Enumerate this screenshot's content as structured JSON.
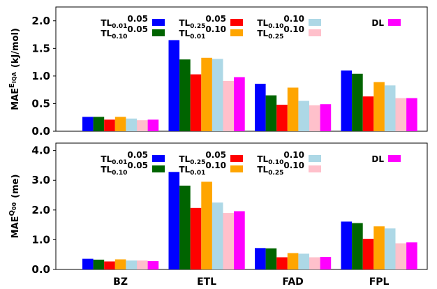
{
  "chart_data": [
    {
      "type": "bar",
      "legend": "upper center",
      "ylabel": {
        "base": "MAE",
        "sup": "E",
        "sup_sub": "IQA",
        "unit": "(kJ/mol)"
      },
      "ylim": [
        0,
        2.25
      ],
      "yticks": [
        {
          "value": 0,
          "label": "0.0"
        },
        {
          "value": 0.5,
          "label": "0.5"
        },
        {
          "value": 1,
          "label": "1.0"
        },
        {
          "value": 1.5,
          "label": "1.5"
        },
        {
          "value": 2,
          "label": "2.0"
        }
      ],
      "series": [
        {
          "name": "TL",
          "sub": "0.01",
          "sup": "0.05",
          "color": "#0000ff",
          "values": [
            0.26,
            1.65,
            0.86,
            1.1
          ]
        },
        {
          "name": "TL",
          "sub": "0.10",
          "sup": "0.05",
          "color": "#006400",
          "values": [
            0.26,
            1.3,
            0.65,
            1.04
          ]
        },
        {
          "name": "TL",
          "sub": "0.25",
          "sup": "0.05",
          "color": "#ff0000",
          "values": [
            0.21,
            1.03,
            0.48,
            0.63
          ]
        },
        {
          "name": "TL",
          "sub": "0.01",
          "sup": "0.10",
          "color": "#ffa500",
          "values": [
            0.26,
            1.33,
            0.79,
            0.89
          ]
        },
        {
          "name": "TL",
          "sub": "0.10",
          "sup": "0.10",
          "color": "#add8e6",
          "values": [
            0.23,
            1.31,
            0.55,
            0.83
          ]
        },
        {
          "name": "TL",
          "sub": "0.25",
          "sup": "0.10",
          "color": "#ffc0cb",
          "values": [
            0.2,
            0.91,
            0.47,
            0.6
          ]
        },
        {
          "name": "DL",
          "color": "#ff00ff",
          "values": [
            0.21,
            0.98,
            0.49,
            0.6
          ]
        }
      ]
    },
    {
      "type": "bar",
      "legend": "upper center",
      "ylabel": {
        "base": "MAE",
        "sup": "Q",
        "sup_sub": "00",
        "unit": "(me)"
      },
      "categories": [
        "BZ",
        "ETL",
        "FAD",
        "FPL"
      ],
      "ylim": [
        0,
        4.25
      ],
      "yticks": [
        {
          "value": 0,
          "label": "0.0"
        },
        {
          "value": 1,
          "label": "1.0"
        },
        {
          "value": 2,
          "label": "2.0"
        },
        {
          "value": 3,
          "label": "3.0"
        },
        {
          "value": 4,
          "label": "4.0"
        }
      ],
      "series": [
        {
          "name": "TL",
          "sub": "0.01",
          "sup": "0.05",
          "color": "#0000ff",
          "values": [
            0.36,
            3.28,
            0.72,
            1.61
          ]
        },
        {
          "name": "TL",
          "sub": "0.10",
          "sup": "0.05",
          "color": "#006400",
          "values": [
            0.33,
            2.82,
            0.71,
            1.56
          ]
        },
        {
          "name": "TL",
          "sub": "0.25",
          "sup": "0.05",
          "color": "#ff0000",
          "values": [
            0.27,
            2.07,
            0.41,
            1.03
          ]
        },
        {
          "name": "TL",
          "sub": "0.01",
          "sup": "0.10",
          "color": "#ffa500",
          "values": [
            0.34,
            2.95,
            0.55,
            1.45
          ]
        },
        {
          "name": "TL",
          "sub": "0.10",
          "sup": "0.10",
          "color": "#add8e6",
          "values": [
            0.3,
            2.25,
            0.53,
            1.38
          ]
        },
        {
          "name": "TL",
          "sub": "0.25",
          "sup": "0.10",
          "color": "#ffc0cb",
          "values": [
            0.3,
            1.9,
            0.41,
            0.88
          ]
        },
        {
          "name": "DL",
          "color": "#ff00ff",
          "values": [
            0.28,
            1.96,
            0.42,
            0.91
          ]
        }
      ]
    }
  ]
}
